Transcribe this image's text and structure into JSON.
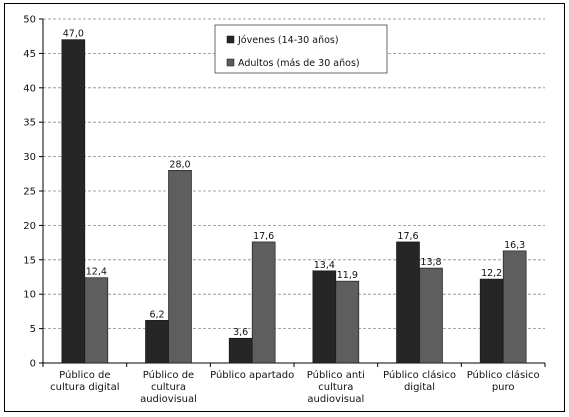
{
  "chart_data": {
    "type": "bar",
    "categories": [
      [
        "Público de",
        "cultura digital"
      ],
      [
        "Público de",
        "cultura",
        "audiovisual"
      ],
      [
        "Público apartado"
      ],
      [
        "Público anti",
        "cultura",
        "audiovisual"
      ],
      [
        "Público clásico",
        "digital"
      ],
      [
        "Público clásico",
        "puro"
      ]
    ],
    "series": [
      {
        "name": "Jóvenes (14-30 años)",
        "color": "#262626",
        "values": [
          47.0,
          6.2,
          3.6,
          13.4,
          17.6,
          12.2
        ],
        "labels": [
          "47,0",
          "6,2",
          "3,6",
          "13,4",
          "17,6",
          "12,2"
        ]
      },
      {
        "name": "Adultos (más de 30 años)",
        "color": "#5e5e5e",
        "values": [
          12.4,
          28.0,
          17.6,
          11.9,
          13.8,
          16.3
        ],
        "labels": [
          "12,4",
          "28,0",
          "17,6",
          "11,9",
          "13,8",
          "16,3"
        ]
      }
    ],
    "ylim": [
      0,
      50
    ],
    "yticks": [
      0,
      5,
      10,
      15,
      20,
      25,
      30,
      35,
      40,
      45,
      50
    ],
    "title": "",
    "xlabel": "",
    "ylabel": "",
    "grid": "horizontal-dashed",
    "legend_position": "top-center"
  }
}
